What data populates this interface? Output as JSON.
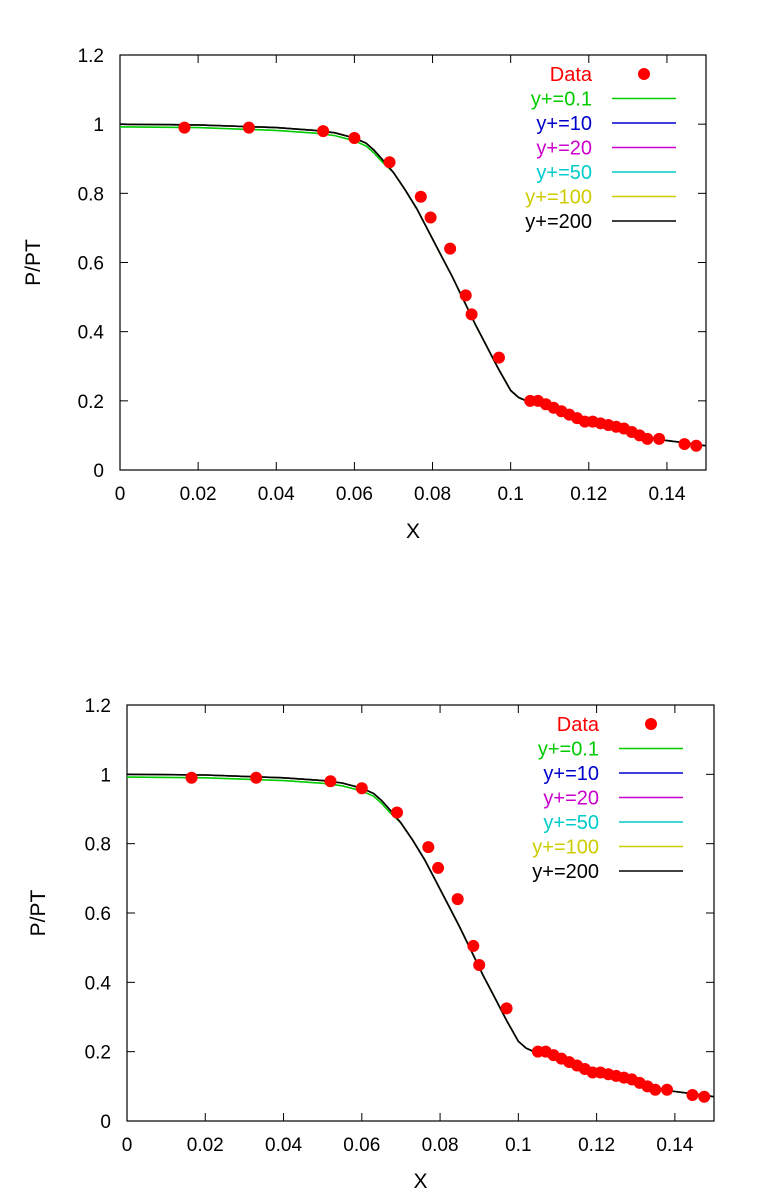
{
  "chart_data": [
    {
      "type": "line",
      "xlabel": "X",
      "ylabel": "P/PT",
      "xlim": [
        0,
        0.15
      ],
      "ylim": [
        0,
        1.2
      ],
      "x_ticks": [
        "0",
        "0.02",
        "0.04",
        "0.06",
        "0.08",
        "0.1",
        "0.12",
        "0.14"
      ],
      "y_ticks": [
        "0",
        "0.2",
        "0.4",
        "0.6",
        "0.8",
        "1",
        "1.2"
      ],
      "grid": false,
      "legend_position": "top-right",
      "series": [
        {
          "name": "Data",
          "kind": "scatter",
          "color": "#ff0000",
          "x": [
            0.0165,
            0.033,
            0.052,
            0.06,
            0.069,
            0.077,
            0.0795,
            0.0845,
            0.0885,
            0.09,
            0.097,
            0.105,
            0.107,
            0.109,
            0.111,
            0.113,
            0.115,
            0.117,
            0.119,
            0.121,
            0.123,
            0.125,
            0.127,
            0.129,
            0.131,
            0.133,
            0.135,
            0.138,
            0.1445,
            0.1475
          ],
          "y": [
            0.99,
            0.99,
            0.98,
            0.96,
            0.89,
            0.79,
            0.73,
            0.64,
            0.505,
            0.45,
            0.325,
            0.2,
            0.2,
            0.19,
            0.18,
            0.17,
            0.16,
            0.15,
            0.14,
            0.14,
            0.135,
            0.13,
            0.125,
            0.12,
            0.11,
            0.1,
            0.09,
            0.09,
            0.075,
            0.07
          ]
        },
        {
          "name": "y+=0.1",
          "kind": "line",
          "color": "#00cc00",
          "offset": -0.008
        },
        {
          "name": "y+=10",
          "kind": "line",
          "color": "#0000cc",
          "offset": 0
        },
        {
          "name": "y+=20",
          "kind": "line",
          "color": "#cc00cc",
          "offset": 0
        },
        {
          "name": "y+=50",
          "kind": "line",
          "color": "#00cccc",
          "offset": 0
        },
        {
          "name": "y+=100",
          "kind": "line",
          "color": "#cccc00",
          "offset": 0
        },
        {
          "name": "y+=200",
          "kind": "line",
          "color": "#000000",
          "offset": 0
        }
      ],
      "curve": {
        "x": [
          0,
          0.02,
          0.04,
          0.05,
          0.055,
          0.06,
          0.063,
          0.065,
          0.067,
          0.07,
          0.073,
          0.076,
          0.079,
          0.082,
          0.085,
          0.088,
          0.091,
          0.094,
          0.097,
          0.1,
          0.102,
          0.104,
          0.106,
          0.11,
          0.115,
          0.12,
          0.125,
          0.13,
          0.135,
          0.14,
          0.145,
          0.15
        ],
        "y": [
          1.0,
          0.998,
          0.99,
          0.982,
          0.975,
          0.96,
          0.945,
          0.925,
          0.9,
          0.86,
          0.81,
          0.755,
          0.69,
          0.625,
          0.56,
          0.49,
          0.42,
          0.355,
          0.29,
          0.23,
          0.21,
          0.2,
          0.195,
          0.18,
          0.16,
          0.14,
          0.125,
          0.11,
          0.095,
          0.085,
          0.078,
          0.07
        ]
      }
    },
    {
      "type": "line",
      "xlabel": "X",
      "ylabel": "P/PT",
      "xlim": [
        0,
        0.15
      ],
      "ylim": [
        0,
        1.2
      ],
      "x_ticks": [
        "0",
        "0.02",
        "0.04",
        "0.06",
        "0.08",
        "0.1",
        "0.12",
        "0.14"
      ],
      "y_ticks": [
        "0",
        "0.2",
        "0.4",
        "0.6",
        "0.8",
        "1",
        "1.2"
      ],
      "grid": false,
      "legend_position": "top-right",
      "series": [
        {
          "name": "Data",
          "kind": "scatter",
          "color": "#ff0000",
          "x": [
            0.0165,
            0.033,
            0.052,
            0.06,
            0.069,
            0.077,
            0.0795,
            0.0845,
            0.0885,
            0.09,
            0.097,
            0.105,
            0.107,
            0.109,
            0.111,
            0.113,
            0.115,
            0.117,
            0.119,
            0.121,
            0.123,
            0.125,
            0.127,
            0.129,
            0.131,
            0.133,
            0.135,
            0.138,
            0.1445,
            0.1475
          ],
          "y": [
            0.99,
            0.99,
            0.98,
            0.96,
            0.89,
            0.79,
            0.73,
            0.64,
            0.505,
            0.45,
            0.325,
            0.2,
            0.2,
            0.19,
            0.18,
            0.17,
            0.16,
            0.15,
            0.14,
            0.14,
            0.135,
            0.13,
            0.125,
            0.12,
            0.11,
            0.1,
            0.09,
            0.09,
            0.075,
            0.07
          ]
        },
        {
          "name": "y+=0.1",
          "kind": "line",
          "color": "#00cc00",
          "offset": -0.008
        },
        {
          "name": "y+=10",
          "kind": "line",
          "color": "#0000cc",
          "offset": 0
        },
        {
          "name": "y+=20",
          "kind": "line",
          "color": "#cc00cc",
          "offset": 0
        },
        {
          "name": "y+=50",
          "kind": "line",
          "color": "#00cccc",
          "offset": 0
        },
        {
          "name": "y+=100",
          "kind": "line",
          "color": "#cccc00",
          "offset": 0
        },
        {
          "name": "y+=200",
          "kind": "line",
          "color": "#000000",
          "offset": 0
        }
      ],
      "curve": {
        "x": [
          0,
          0.02,
          0.04,
          0.05,
          0.055,
          0.06,
          0.063,
          0.065,
          0.067,
          0.07,
          0.073,
          0.076,
          0.079,
          0.082,
          0.085,
          0.088,
          0.091,
          0.094,
          0.097,
          0.1,
          0.102,
          0.104,
          0.106,
          0.11,
          0.115,
          0.12,
          0.125,
          0.13,
          0.135,
          0.14,
          0.145,
          0.15
        ],
        "y": [
          1.0,
          0.998,
          0.99,
          0.982,
          0.975,
          0.96,
          0.945,
          0.925,
          0.9,
          0.86,
          0.81,
          0.755,
          0.69,
          0.625,
          0.56,
          0.49,
          0.42,
          0.355,
          0.29,
          0.23,
          0.21,
          0.2,
          0.195,
          0.18,
          0.16,
          0.14,
          0.125,
          0.11,
          0.095,
          0.085,
          0.078,
          0.07
        ]
      }
    }
  ]
}
